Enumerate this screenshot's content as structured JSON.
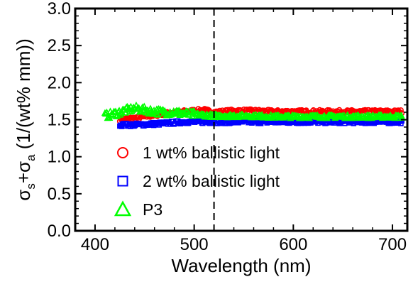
{
  "chart_data": {
    "type": "scatter",
    "xlabel": "Wavelength (nm)",
    "ylabel": {
      "prefix": "σ",
      "sub1": "s",
      "mid": "+σ",
      "sub2": "a",
      "suffix": " (1/(wt% mm))"
    },
    "xlim": [
      380,
      715
    ],
    "ylim": [
      0.0,
      3.0
    ],
    "xticks": [
      "400",
      "500",
      "600",
      "700"
    ],
    "xtick_values": [
      400,
      500,
      600,
      700
    ],
    "yticks": [
      "0.0",
      "0.5",
      "1.0",
      "1.5",
      "2.0",
      "2.5",
      "3.0"
    ],
    "ytick_values": [
      0.0,
      0.5,
      1.0,
      1.5,
      2.0,
      2.5,
      3.0
    ],
    "reference_line_x": 520,
    "legend_position": "bottom-left",
    "series": [
      {
        "name": "1 wt% ballistic light",
        "marker": "circle",
        "color": "#ff0000",
        "x": [
          425,
          440,
          455,
          470,
          480,
          490,
          500,
          510,
          520,
          540,
          560,
          580,
          600,
          620,
          640,
          660,
          680,
          700,
          710
        ],
        "y": [
          1.5,
          1.52,
          1.55,
          1.58,
          1.6,
          1.61,
          1.62,
          1.63,
          1.6,
          1.62,
          1.62,
          1.61,
          1.61,
          1.61,
          1.61,
          1.61,
          1.61,
          1.61,
          1.61
        ]
      },
      {
        "name": "2 wt% ballistic light",
        "marker": "square",
        "color": "#0000ff",
        "x": [
          425,
          440,
          455,
          470,
          480,
          490,
          500,
          510,
          520,
          540,
          560,
          580,
          600,
          620,
          640,
          660,
          680,
          700,
          710
        ],
        "y": [
          1.43,
          1.43,
          1.44,
          1.45,
          1.46,
          1.47,
          1.47,
          1.47,
          1.47,
          1.47,
          1.47,
          1.47,
          1.47,
          1.47,
          1.47,
          1.47,
          1.47,
          1.47,
          1.47
        ]
      },
      {
        "name": "P3",
        "marker": "triangle",
        "color": "#00ff00",
        "x": [
          410,
          420,
          430,
          440,
          450,
          460,
          470,
          480,
          490,
          500,
          510,
          520,
          540,
          560,
          580,
          600,
          620,
          640,
          660,
          680,
          700,
          710
        ],
        "y": [
          1.55,
          1.58,
          1.62,
          1.65,
          1.63,
          1.61,
          1.6,
          1.6,
          1.58,
          1.57,
          1.56,
          1.55,
          1.55,
          1.55,
          1.54,
          1.54,
          1.54,
          1.54,
          1.54,
          1.54,
          1.54,
          1.54
        ]
      }
    ]
  }
}
